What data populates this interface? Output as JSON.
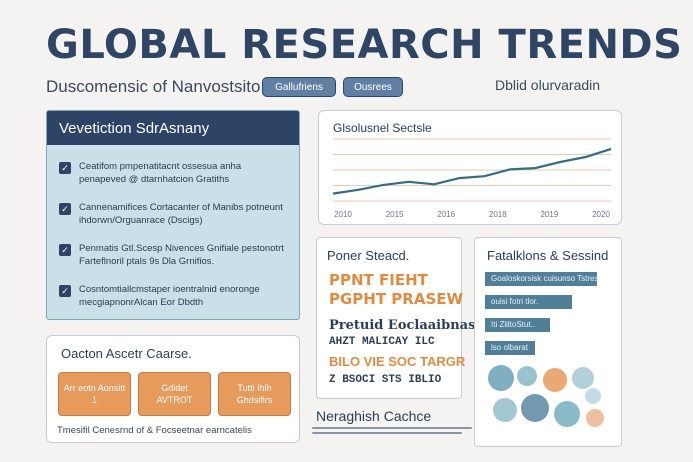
{
  "header": {
    "title": "GLOBAL RESEARCH TRENDS",
    "subtitle": "Duscomensic of Nanvostsito",
    "pill_1": "Gallufriens",
    "pill_2": "Ousrees",
    "right_label": "Dblid olurvaradin"
  },
  "features": {
    "title": "Vevetiction SdrAsnany",
    "items": [
      "Ceatifom pmpenatitacnt ossesua anha penapeved @ dtarnhatcion Gratiths",
      "Cannenamifices Cortacanter of Manibs potneunt ihdorwn/Orguanrace (Dscigs)",
      "Penmatis Gtl.Scesp Nivences Gnifiale pestonotrt Farteflnoril ptals 9s Dla Grnifios.",
      "Cosntomtiallcmstaper ioentralnid enoronge mecgiapnonrAlcan Eor Dbdth"
    ]
  },
  "actions": {
    "title": "Oacton Ascetr Caarse.",
    "buttons": [
      "Arr eotn Aonsitt 1",
      "Gdldet AVTROT",
      "Tutti Ihlh Ghdsifirs"
    ],
    "footer": "Tmesifil Cenesrnd of & Focseetnar earncatelis"
  },
  "line_chart": {
    "title": "Glsolusnel Sectsle"
  },
  "chart_data": {
    "type": "line",
    "title": "Glsolusnel Sectsle",
    "categories": [
      "2010",
      "2015",
      "2016",
      "2018",
      "2019",
      "2020"
    ],
    "series": [
      {
        "values": [
          12,
          18,
          26,
          31,
          27,
          37,
          40,
          51,
          53,
          63,
          71,
          84
        ]
      }
    ],
    "x": [
      0,
      1,
      2,
      3,
      4,
      5,
      6,
      7,
      8,
      9,
      10,
      11
    ],
    "ylim": [
      0,
      100
    ],
    "grid": true,
    "color": "#2e6f86"
  },
  "fonts": {
    "title": "Poner Steacd.",
    "line_1": "PPNT FIEHT",
    "line_2": "PGPHT PRASEW",
    "line_3": "Pretuid Eoclaaibnas",
    "line_4": "AHZT MALICAY ILC",
    "line_5": "BILO VIE SOC TARGR",
    "line_6": "Z BSOCI STS IBLIO"
  },
  "bottom_mid": {
    "title": "Neraghish Cachce"
  },
  "stats": {
    "title": "Fatalklons & Sessind",
    "bars": [
      {
        "label": "Goaloskorsisk cuisunso Tstrest",
        "value": 100
      },
      {
        "label": "ouisi fotri tlor.",
        "value": 78
      },
      {
        "label": "Iti ZliltoStut..",
        "value": 58
      },
      {
        "label": "lso olbarat",
        "value": 45
      }
    ]
  },
  "colors": {
    "navy": "#2d4467",
    "teal_panel": "#c9e0e8",
    "orange": "#e69a5b",
    "line": "#2e6f86",
    "bar": "#4f7f99"
  }
}
